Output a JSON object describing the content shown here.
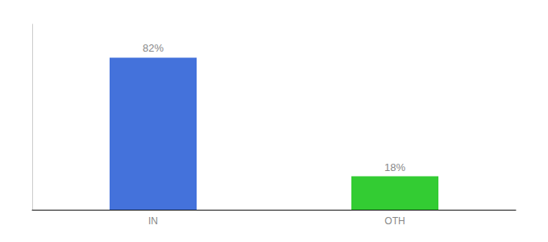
{
  "chart_data": {
    "type": "bar",
    "categories": [
      "IN",
      "OTH"
    ],
    "values": [
      82,
      18
    ],
    "colors": [
      "#4472DB",
      "#33CC33"
    ],
    "value_labels": [
      "82%",
      "18%"
    ],
    "data_labels": true,
    "ylim": [
      0,
      100
    ],
    "tick_labels": "x",
    "grid": false
  }
}
